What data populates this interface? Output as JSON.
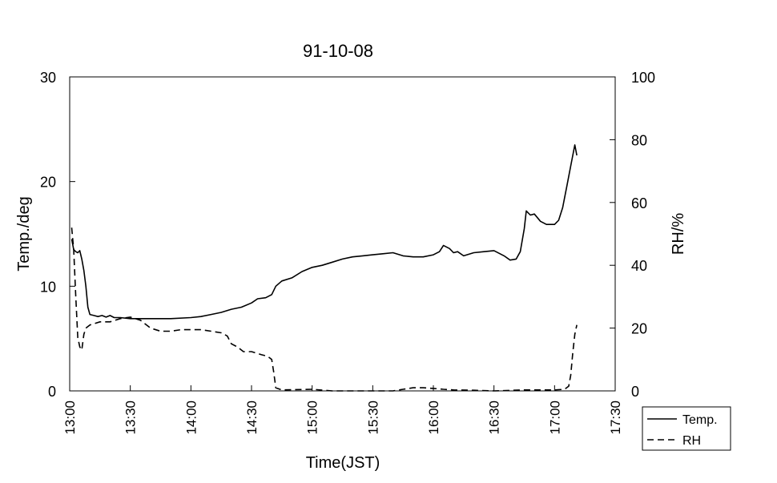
{
  "chart_data": {
    "type": "line",
    "title": "91-10-08",
    "xlabel": "Time(JST)",
    "ylabel": "Temp./deg",
    "y2label": "RH/%",
    "x_ticks": [
      "13:00",
      "13:30",
      "14:00",
      "14:30",
      "15:00",
      "15:30",
      "16:00",
      "16:30",
      "17:00",
      "17:30"
    ],
    "xlim": [
      "13:00",
      "17:30"
    ],
    "y_ticks": [
      "0",
      "10",
      "20",
      "30"
    ],
    "ylim": [
      0,
      30
    ],
    "y2_ticks": [
      "0",
      "20",
      "40",
      "60",
      "80",
      "100"
    ],
    "y2lim": [
      0,
      100
    ],
    "grid": false,
    "legend_position": "bottom-right, outside plot",
    "series": [
      {
        "name": "Temp.",
        "axis": "left",
        "style": "solid",
        "points": [
          [
            "13:01",
            14.5
          ],
          [
            "13:02",
            13.5
          ],
          [
            "13:03",
            13.3
          ],
          [
            "13:04",
            13.2
          ],
          [
            "13:05",
            13.4
          ],
          [
            "13:06",
            12.6
          ],
          [
            "13:07",
            11.5
          ],
          [
            "13:08",
            10
          ],
          [
            "13:09",
            8
          ],
          [
            "13:10",
            7.3
          ],
          [
            "13:12",
            7.2
          ],
          [
            "13:14",
            7.1
          ],
          [
            "13:16",
            7.2
          ],
          [
            "13:18",
            7.05
          ],
          [
            "13:20",
            7.2
          ],
          [
            "13:22",
            7.0
          ],
          [
            "13:25",
            7.0
          ],
          [
            "13:30",
            6.9
          ],
          [
            "13:40",
            6.9
          ],
          [
            "13:50",
            6.9
          ],
          [
            "14:00",
            7.0
          ],
          [
            "14:05",
            7.1
          ],
          [
            "14:10",
            7.3
          ],
          [
            "14:15",
            7.5
          ],
          [
            "14:20",
            7.8
          ],
          [
            "14:25",
            8.0
          ],
          [
            "14:30",
            8.4
          ],
          [
            "14:33",
            8.8
          ],
          [
            "14:37",
            8.9
          ],
          [
            "14:40",
            9.2
          ],
          [
            "14:42",
            10
          ],
          [
            "14:45",
            10.5
          ],
          [
            "14:50",
            10.8
          ],
          [
            "14:55",
            11.4
          ],
          [
            "15:00",
            11.8
          ],
          [
            "15:05",
            12.0
          ],
          [
            "15:10",
            12.3
          ],
          [
            "15:15",
            12.6
          ],
          [
            "15:20",
            12.8
          ],
          [
            "15:25",
            12.9
          ],
          [
            "15:30",
            13.0
          ],
          [
            "15:35",
            13.1
          ],
          [
            "15:40",
            13.2
          ],
          [
            "15:45",
            12.9
          ],
          [
            "15:50",
            12.8
          ],
          [
            "15:55",
            12.8
          ],
          [
            "16:00",
            13.0
          ],
          [
            "16:03",
            13.3
          ],
          [
            "16:05",
            13.9
          ],
          [
            "16:08",
            13.6
          ],
          [
            "16:10",
            13.2
          ],
          [
            "16:12",
            13.3
          ],
          [
            "16:15",
            12.9
          ],
          [
            "16:20",
            13.2
          ],
          [
            "16:25",
            13.3
          ],
          [
            "16:30",
            13.4
          ],
          [
            "16:35",
            12.9
          ],
          [
            "16:38",
            12.5
          ],
          [
            "16:41",
            12.6
          ],
          [
            "16:43",
            13.3
          ],
          [
            "16:45",
            15.5
          ],
          [
            "16:46",
            17.2
          ],
          [
            "16:48",
            16.8
          ],
          [
            "16:50",
            16.9
          ],
          [
            "16:53",
            16.2
          ],
          [
            "16:56",
            15.9
          ],
          [
            "17:00",
            15.9
          ],
          [
            "17:02",
            16.3
          ],
          [
            "17:04",
            17.5
          ],
          [
            "17:06",
            19.5
          ],
          [
            "17:08",
            21.5
          ],
          [
            "17:10",
            23.5
          ],
          [
            "17:11",
            22.5
          ]
        ]
      },
      {
        "name": "RH",
        "axis": "right",
        "style": "dashed",
        "points": [
          [
            "13:01",
            52
          ],
          [
            "13:02",
            45
          ],
          [
            "13:03",
            30
          ],
          [
            "13:04",
            17
          ],
          [
            "13:05",
            14
          ],
          [
            "13:06",
            13
          ],
          [
            "13:07",
            18
          ],
          [
            "13:08",
            20
          ],
          [
            "13:10",
            21
          ],
          [
            "13:15",
            22
          ],
          [
            "13:20",
            22
          ],
          [
            "13:25",
            23
          ],
          [
            "13:30",
            23.5
          ],
          [
            "13:35",
            22.5
          ],
          [
            "13:40",
            20
          ],
          [
            "13:45",
            19
          ],
          [
            "13:50",
            19
          ],
          [
            "13:55",
            19.5
          ],
          [
            "14:00",
            19.5
          ],
          [
            "14:05",
            19.5
          ],
          [
            "14:10",
            19
          ],
          [
            "14:15",
            18.5
          ],
          [
            "14:18",
            17.5
          ],
          [
            "14:20",
            15
          ],
          [
            "14:23",
            14
          ],
          [
            "14:26",
            12.5
          ],
          [
            "14:30",
            12.5
          ],
          [
            "14:35",
            11.5
          ],
          [
            "14:38",
            11
          ],
          [
            "14:40",
            10
          ],
          [
            "14:41",
            6
          ],
          [
            "14:42",
            1
          ],
          [
            "14:45",
            0.3
          ],
          [
            "15:00",
            0.5
          ],
          [
            "15:10",
            0
          ],
          [
            "15:20",
            0
          ],
          [
            "15:40",
            0
          ],
          [
            "15:45",
            0.5
          ],
          [
            "15:50",
            1
          ],
          [
            "15:55",
            1
          ],
          [
            "16:00",
            0.8
          ],
          [
            "16:05",
            0.5
          ],
          [
            "16:10",
            0.3
          ],
          [
            "16:20",
            0.2
          ],
          [
            "16:30",
            0
          ],
          [
            "16:40",
            0.2
          ],
          [
            "16:45",
            0.3
          ],
          [
            "17:00",
            0.3
          ],
          [
            "17:05",
            0.5
          ],
          [
            "17:07",
            1.5
          ],
          [
            "17:08",
            5
          ],
          [
            "17:09",
            12
          ],
          [
            "17:10",
            18
          ],
          [
            "17:11",
            21
          ]
        ]
      }
    ]
  }
}
